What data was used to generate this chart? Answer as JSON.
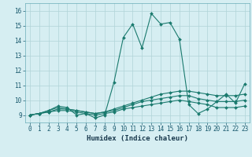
{
  "title": "",
  "xlabel": "Humidex (Indice chaleur)",
  "xlim": [
    -0.5,
    23.5
  ],
  "ylim": [
    8.5,
    16.5
  ],
  "yticks": [
    9,
    10,
    11,
    12,
    13,
    14,
    15,
    16
  ],
  "xticks": [
    0,
    1,
    2,
    3,
    4,
    5,
    6,
    7,
    8,
    9,
    10,
    11,
    12,
    13,
    14,
    15,
    16,
    17,
    18,
    19,
    20,
    21,
    22,
    23
  ],
  "bg_color": "#d6eef2",
  "line_color": "#1a7a6e",
  "grid_color": "#b0d4d8",
  "series": [
    [
      9.0,
      9.1,
      9.3,
      9.6,
      9.5,
      9.0,
      9.1,
      8.8,
      9.0,
      11.2,
      14.2,
      15.1,
      13.5,
      15.8,
      15.1,
      15.2,
      14.1,
      9.7,
      9.1,
      9.4,
      9.9,
      10.4,
      9.8,
      11.1
    ],
    [
      9.0,
      9.1,
      9.3,
      9.5,
      9.4,
      9.3,
      9.2,
      9.1,
      9.2,
      9.4,
      9.6,
      9.8,
      10.0,
      10.2,
      10.4,
      10.5,
      10.6,
      10.6,
      10.5,
      10.4,
      10.3,
      10.3,
      10.3,
      10.4
    ],
    [
      9.0,
      9.1,
      9.2,
      9.4,
      9.4,
      9.3,
      9.2,
      9.1,
      9.2,
      9.3,
      9.5,
      9.7,
      9.9,
      10.0,
      10.1,
      10.2,
      10.3,
      10.3,
      10.1,
      10.0,
      9.9,
      9.9,
      9.9,
      10.0
    ],
    [
      9.0,
      9.1,
      9.2,
      9.3,
      9.3,
      9.2,
      9.1,
      9.0,
      9.1,
      9.2,
      9.4,
      9.5,
      9.6,
      9.7,
      9.8,
      9.9,
      10.0,
      9.9,
      9.8,
      9.7,
      9.5,
      9.5,
      9.5,
      9.6
    ]
  ],
  "xlabel_fontsize": 6.5,
  "tick_fontsize": 5.5,
  "marker_size": 2.0,
  "linewidth": 0.8
}
